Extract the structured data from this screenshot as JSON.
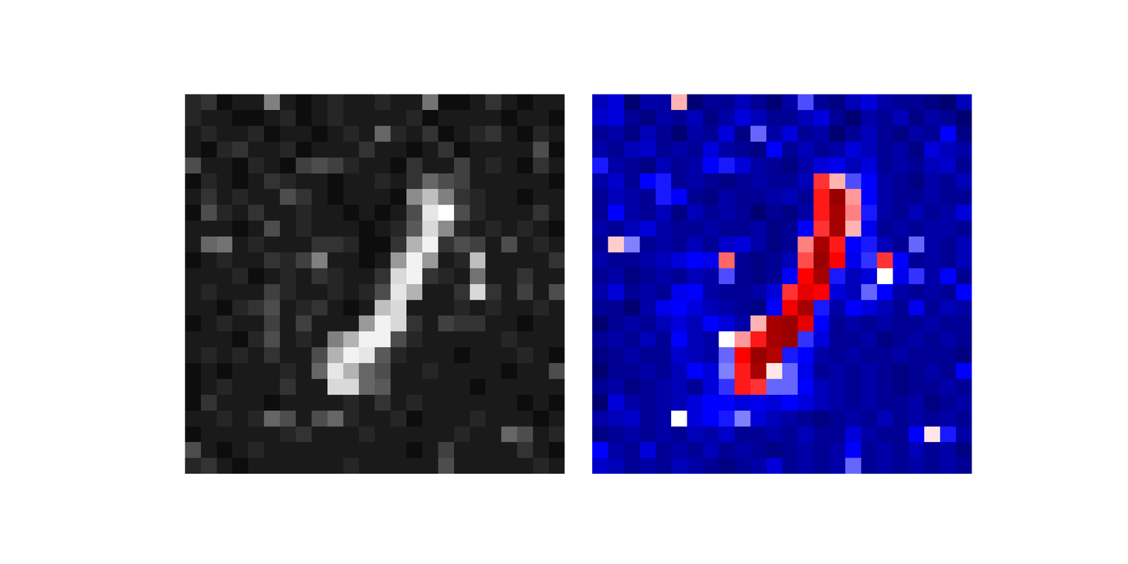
{
  "chart_data": [
    {
      "type": "heatmap",
      "color": "gray",
      "tick_labels": false,
      "zlim": [
        0,
        1
      ],
      "cells": [
        [
          0.15,
          0.2,
          0.05,
          0.1,
          0.1,
          0.5,
          0.1,
          0.05,
          0.1,
          0.15,
          0.1,
          0.1,
          0.15,
          0.1,
          0.1,
          0.45,
          0.05,
          0.05,
          0.1,
          0.2,
          0.1,
          0.05,
          0.1,
          0.1
        ],
        [
          0.15,
          0.1,
          0.1,
          0.05,
          0.05,
          0.1,
          0.15,
          0.05,
          0.1,
          0.15,
          0.1,
          0.1,
          0.1,
          0.1,
          0.15,
          0.05,
          0.1,
          0.1,
          0.1,
          0.1,
          0.05,
          0.1,
          0.1,
          0.05
        ],
        [
          0.1,
          0.15,
          0.1,
          0.1,
          0.15,
          0.05,
          0.1,
          0.1,
          0.05,
          0.1,
          0.15,
          0.1,
          0.4,
          0.15,
          0.1,
          0.2,
          0.05,
          0.1,
          0.15,
          0.2,
          0.1,
          0.05,
          0.15,
          0.1
        ],
        [
          0.1,
          0.05,
          0.15,
          0.2,
          0.1,
          0.1,
          0.15,
          0.05,
          0.1,
          0.1,
          0.1,
          0.2,
          0.1,
          0.1,
          0.05,
          0.1,
          0.2,
          0.05,
          0.1,
          0.1,
          0.1,
          0.1,
          0.3,
          0.05
        ],
        [
          0.3,
          0.1,
          0.1,
          0.05,
          0.15,
          0.1,
          0.05,
          0.25,
          0.3,
          0.25,
          0.15,
          0.1,
          0.1,
          0.05,
          0.2,
          0.1,
          0.1,
          0.25,
          0.1,
          0.15,
          0.1,
          0.05,
          0.2,
          0.1
        ],
        [
          0.05,
          0.15,
          0.1,
          0.05,
          0.1,
          0.2,
          0.15,
          0.1,
          0.1,
          0.05,
          0.1,
          0.1,
          0.15,
          0.1,
          0.2,
          0.4,
          0.3,
          0.25,
          0.1,
          0.1,
          0.1,
          0.1,
          0.1,
          0.05
        ],
        [
          0.1,
          0.2,
          0.1,
          0.15,
          0.1,
          0.1,
          0.3,
          0.2,
          0.1,
          0.05,
          0.1,
          0.1,
          0.1,
          0.05,
          0.55,
          0.75,
          0.5,
          0.2,
          0.15,
          0.1,
          0.1,
          0.05,
          0.1,
          0.1
        ],
        [
          0.05,
          0.3,
          0.15,
          0.1,
          0.2,
          0.1,
          0.1,
          0.15,
          0.1,
          0.1,
          0.05,
          0.1,
          0.05,
          0.1,
          0.3,
          0.9,
          1.0,
          0.3,
          0.15,
          0.1,
          0.1,
          0.1,
          0.2,
          0.1
        ],
        [
          0.1,
          0.1,
          0.1,
          0.05,
          0.1,
          0.3,
          0.1,
          0.15,
          0.1,
          0.1,
          0.1,
          0.05,
          0.1,
          0.15,
          0.35,
          0.85,
          0.55,
          0.15,
          0.1,
          0.15,
          0.1,
          0.15,
          0.1,
          0.05
        ],
        [
          0.1,
          0.4,
          0.45,
          0.1,
          0.15,
          0.1,
          0.1,
          0.1,
          0.2,
          0.2,
          0.15,
          0.05,
          0.05,
          0.2,
          0.7,
          0.95,
          0.2,
          0.3,
          0.25,
          0.1,
          0.3,
          0.1,
          0.15,
          0.1
        ],
        [
          0.05,
          0.1,
          0.15,
          0.1,
          0.1,
          0.2,
          0.15,
          0.25,
          0.5,
          0.1,
          0.1,
          0.05,
          0.1,
          0.6,
          0.95,
          0.6,
          0.1,
          0.15,
          0.75,
          0.1,
          0.1,
          0.1,
          0.1,
          0.2
        ],
        [
          0.1,
          0.1,
          0.1,
          0.15,
          0.05,
          0.1,
          0.15,
          0.1,
          0.2,
          0.15,
          0.1,
          0.1,
          0.2,
          0.85,
          0.95,
          0.2,
          0.15,
          0.1,
          0.45,
          0.1,
          0.1,
          0.2,
          0.1,
          0.1
        ],
        [
          0.1,
          0.15,
          0.1,
          0.1,
          0.1,
          0.25,
          0.15,
          0.1,
          0.1,
          0.15,
          0.1,
          0.15,
          0.3,
          0.9,
          0.7,
          0.1,
          0.1,
          0.2,
          0.85,
          0.2,
          0.1,
          0.25,
          0.1,
          0.3
        ],
        [
          0.1,
          0.1,
          0.05,
          0.15,
          0.2,
          0.3,
          0.1,
          0.15,
          0.2,
          0.1,
          0.05,
          0.1,
          0.75,
          0.85,
          0.1,
          0.1,
          0.1,
          0.15,
          0.1,
          0.15,
          0.1,
          0.1,
          0.15,
          0.1
        ],
        [
          0.05,
          0.1,
          0.15,
          0.1,
          0.1,
          0.25,
          0.1,
          0.25,
          0.1,
          0.1,
          0.1,
          0.6,
          0.95,
          0.85,
          0.2,
          0.1,
          0.25,
          0.2,
          0.2,
          0.1,
          0.1,
          0.05,
          0.1,
          0.1
        ],
        [
          0.1,
          0.1,
          0.1,
          0.05,
          0.15,
          0.3,
          0.1,
          0.15,
          0.1,
          0.5,
          0.7,
          0.95,
          0.95,
          0.3,
          0.15,
          0.1,
          0.1,
          0.1,
          0.1,
          0.1,
          0.15,
          0.1,
          0.1,
          0.1
        ],
        [
          0.1,
          0.15,
          0.1,
          0.15,
          0.1,
          0.2,
          0.1,
          0.1,
          0.3,
          0.7,
          0.95,
          0.9,
          0.35,
          0.15,
          0.1,
          0.1,
          0.1,
          0.05,
          0.1,
          0.1,
          0.1,
          0.15,
          0.1,
          0.05
        ],
        [
          0.05,
          0.1,
          0.05,
          0.1,
          0.1,
          0.1,
          0.15,
          0.1,
          0.4,
          0.9,
          0.7,
          0.4,
          0.3,
          0.1,
          0.1,
          0.15,
          0.1,
          0.1,
          0.1,
          0.1,
          0.05,
          0.1,
          0.1,
          0.3
        ],
        [
          0.05,
          0.1,
          0.15,
          0.1,
          0.1,
          0.1,
          0.2,
          0.1,
          0.1,
          0.85,
          0.85,
          0.4,
          0.35,
          0.1,
          0.1,
          0.1,
          0.1,
          0.1,
          0.05,
          0.1,
          0.1,
          0.1,
          0.1,
          0.1
        ],
        [
          0.05,
          0.2,
          0.1,
          0.1,
          0.1,
          0.05,
          0.1,
          0.1,
          0.1,
          0.1,
          0.15,
          0.1,
          0.2,
          0.1,
          0.15,
          0.1,
          0.1,
          0.1,
          0.1,
          0.1,
          0.1,
          0.05,
          0.1,
          0.05
        ],
        [
          0.1,
          0.1,
          0.15,
          0.1,
          0.15,
          0.4,
          0.3,
          0.1,
          0.3,
          0.4,
          0.15,
          0.1,
          0.1,
          0.15,
          0.05,
          0.1,
          0.1,
          0.1,
          0.15,
          0.1,
          0.1,
          0.1,
          0.05,
          0.1
        ],
        [
          0.05,
          0.1,
          0.1,
          0.1,
          0.1,
          0.1,
          0.15,
          0.2,
          0.1,
          0.1,
          0.1,
          0.15,
          0.1,
          0.1,
          0.1,
          0.1,
          0.1,
          0.15,
          0.1,
          0.1,
          0.4,
          0.3,
          0.1,
          0.15
        ],
        [
          0.3,
          0.1,
          0.05,
          0.1,
          0.15,
          0.1,
          0.1,
          0.1,
          0.1,
          0.1,
          0.1,
          0.1,
          0.1,
          0.1,
          0.05,
          0.1,
          0.25,
          0.1,
          0.1,
          0.1,
          0.1,
          0.2,
          0.1,
          0.05
        ],
        [
          0.15,
          0.2,
          0.1,
          0.05,
          0.1,
          0.1,
          0.1,
          0.1,
          0.1,
          0.1,
          0.15,
          0.1,
          0.1,
          0.1,
          0.1,
          0.1,
          0.3,
          0.1,
          0.1,
          0.1,
          0.1,
          0.1,
          0.15,
          0.1
        ]
      ]
    },
    {
      "type": "heatmap",
      "color": "seismic",
      "tick_labels": false,
      "zlim": [
        -1,
        1
      ],
      "cells": [
        [
          -0.7,
          -0.6,
          -0.9,
          -0.75,
          -0.75,
          0.15,
          -0.9,
          -0.8,
          -0.8,
          -0.7,
          -0.8,
          -0.9,
          -0.75,
          -0.35,
          -0.8,
          -0.85,
          -0.7,
          -0.6,
          -0.75,
          -0.8,
          -0.8,
          -0.85,
          -0.9,
          -0.7
        ],
        [
          -0.65,
          -0.6,
          -0.8,
          -0.85,
          -0.75,
          -0.8,
          -0.7,
          -0.85,
          -0.75,
          -0.6,
          -0.7,
          -0.8,
          -0.8,
          -0.7,
          -0.6,
          -0.8,
          -0.9,
          -0.75,
          -0.8,
          -0.7,
          -0.85,
          -0.75,
          -0.8,
          -0.9
        ],
        [
          -0.8,
          -0.75,
          -0.85,
          -0.7,
          -0.8,
          -0.9,
          -0.75,
          -0.8,
          -0.6,
          -0.85,
          -0.3,
          -0.75,
          -0.6,
          -0.8,
          -0.75,
          -0.9,
          -0.8,
          -0.7,
          -0.8,
          -0.85,
          -0.75,
          -0.8,
          -0.5,
          -0.85
        ],
        [
          -0.75,
          -0.8,
          -0.7,
          -0.65,
          -0.8,
          -0.75,
          -0.8,
          -0.6,
          -0.75,
          -0.8,
          -0.85,
          -0.5,
          -0.8,
          -0.7,
          -0.8,
          -0.75,
          -0.6,
          -0.7,
          -0.8,
          -0.75,
          -0.85,
          -0.6,
          -0.7,
          -0.75
        ],
        [
          -0.45,
          -0.75,
          -0.8,
          -0.85,
          -0.7,
          -0.8,
          -0.75,
          -0.5,
          -0.45,
          -0.6,
          -0.75,
          -0.8,
          -0.85,
          -0.75,
          -0.6,
          -0.55,
          -0.7,
          -0.6,
          -0.8,
          -0.75,
          -0.8,
          -0.7,
          -0.65,
          -0.8
        ],
        [
          -0.75,
          -0.65,
          -0.8,
          -0.5,
          -0.45,
          -0.8,
          -0.75,
          -0.8,
          -0.85,
          -0.8,
          -0.75,
          -0.8,
          -0.8,
          -0.7,
          0.4,
          0.15,
          -0.35,
          -0.5,
          -0.75,
          -0.8,
          -0.85,
          -0.75,
          -0.8,
          -0.7
        ],
        [
          -0.8,
          -0.7,
          -0.75,
          -0.8,
          -0.45,
          -0.5,
          -0.8,
          -0.85,
          -0.75,
          -0.8,
          -0.8,
          -0.75,
          -0.7,
          -0.8,
          0.45,
          0.9,
          0.2,
          -0.5,
          -0.75,
          -0.8,
          -0.8,
          -0.75,
          -0.8,
          -0.8
        ],
        [
          -0.8,
          -0.5,
          -0.75,
          -0.8,
          -0.7,
          -0.85,
          -0.7,
          -0.8,
          -0.75,
          -0.8,
          -0.9,
          -0.8,
          -0.85,
          -0.75,
          0.45,
          0.85,
          0.25,
          -0.45,
          -0.75,
          -0.8,
          -0.7,
          -0.8,
          -0.75,
          -0.6
        ],
        [
          -0.75,
          -0.8,
          -0.7,
          -0.6,
          -0.75,
          -0.8,
          -0.8,
          -0.75,
          -0.8,
          -0.8,
          -0.75,
          -0.85,
          -0.8,
          -0.5,
          0.4,
          0.85,
          0.15,
          -0.55,
          -0.8,
          -0.75,
          -0.8,
          -0.75,
          -0.75,
          -0.8
        ],
        [
          -0.8,
          0.1,
          -0.25,
          -0.8,
          -0.75,
          -0.8,
          -0.7,
          -0.8,
          -0.65,
          -0.6,
          -0.75,
          -0.85,
          -0.8,
          0.25,
          0.85,
          0.45,
          -0.5,
          -0.45,
          -0.7,
          -0.8,
          -0.3,
          -0.75,
          -0.8,
          -0.7
        ],
        [
          -0.75,
          -0.8,
          -0.8,
          -0.75,
          -0.7,
          -0.6,
          -0.5,
          -0.55,
          0.3,
          -0.8,
          -0.85,
          -0.8,
          -0.7,
          0.35,
          0.9,
          0.5,
          -0.55,
          -0.4,
          0.4,
          -0.5,
          -0.8,
          -0.75,
          -0.8,
          -0.7
        ],
        [
          -0.8,
          -0.75,
          -0.85,
          -0.8,
          -0.75,
          -0.8,
          -0.7,
          -0.75,
          -0.35,
          -0.8,
          -0.85,
          -0.8,
          -0.5,
          0.5,
          0.85,
          -0.45,
          -0.7,
          -0.6,
          0.0,
          -0.55,
          -0.4,
          -0.75,
          -0.5,
          -0.8
        ],
        [
          -0.75,
          -0.6,
          -0.8,
          -0.75,
          -0.8,
          -0.55,
          -0.5,
          -0.75,
          -0.8,
          -0.8,
          -0.75,
          -0.6,
          0.4,
          0.6,
          0.5,
          -0.6,
          -0.7,
          -0.3,
          -0.5,
          -0.75,
          -0.8,
          -0.75,
          -0.8,
          -0.5
        ],
        [
          -0.8,
          -0.8,
          -0.9,
          -0.75,
          -0.55,
          -0.5,
          -0.6,
          -0.7,
          -0.75,
          -0.8,
          -0.85,
          -0.5,
          0.55,
          0.85,
          -0.45,
          -0.75,
          -0.5,
          -0.6,
          -0.7,
          -0.8,
          -0.55,
          -0.8,
          -0.7,
          -0.75
        ],
        [
          -0.9,
          -0.8,
          -0.75,
          -0.8,
          -0.7,
          -0.6,
          -0.7,
          -0.5,
          -0.6,
          -0.75,
          0.15,
          0.85,
          0.9,
          0.6,
          -0.5,
          -0.8,
          -0.75,
          -0.8,
          -0.75,
          -0.8,
          -0.8,
          -0.75,
          -0.8,
          -0.8
        ],
        [
          -0.8,
          -0.75,
          -0.8,
          -0.7,
          -0.8,
          -0.5,
          -0.7,
          -0.75,
          0.0,
          0.2,
          0.45,
          0.85,
          0.9,
          -0.4,
          -0.6,
          -0.8,
          -0.8,
          -0.75,
          -0.85,
          -0.8,
          -0.75,
          -0.8,
          -0.75,
          -0.8
        ],
        [
          -0.85,
          -0.8,
          -0.75,
          -0.8,
          -0.8,
          -0.65,
          -0.7,
          -0.75,
          -0.3,
          0.5,
          0.9,
          0.8,
          -0.45,
          -0.5,
          -0.75,
          -0.8,
          -0.75,
          -0.8,
          -0.8,
          -0.75,
          -0.8,
          -0.8,
          -0.8,
          -0.85
        ],
        [
          -0.9,
          -0.8,
          -0.8,
          -0.75,
          -0.8,
          -0.7,
          -0.5,
          -0.6,
          -0.25,
          0.45,
          0.85,
          0.05,
          -0.3,
          -0.55,
          -0.8,
          -0.75,
          -0.8,
          -0.75,
          -0.8,
          -0.85,
          -0.8,
          -0.75,
          -0.8,
          -0.5
        ],
        [
          -0.8,
          -0.75,
          -0.85,
          -0.8,
          -0.75,
          -0.7,
          -0.8,
          -0.6,
          -0.4,
          0.45,
          0.4,
          -0.3,
          -0.3,
          -0.5,
          -0.7,
          -0.75,
          -0.8,
          -0.75,
          -0.8,
          -0.85,
          -0.8,
          -0.8,
          -0.75,
          -0.8
        ],
        [
          -0.9,
          -0.6,
          -0.75,
          -0.8,
          -0.75,
          -0.7,
          -0.6,
          -0.5,
          -0.5,
          -0.6,
          -0.55,
          -0.6,
          -0.5,
          -0.6,
          -0.7,
          -0.75,
          -0.8,
          -0.75,
          -0.8,
          -0.8,
          -0.75,
          -0.85,
          -0.8,
          -0.75
        ],
        [
          -0.75,
          -0.7,
          -0.65,
          -0.8,
          -0.75,
          0.0,
          -0.6,
          -0.5,
          -0.45,
          -0.25,
          -0.6,
          -0.7,
          -0.75,
          -0.8,
          -0.85,
          -0.8,
          -0.75,
          -0.8,
          -0.7,
          -0.8,
          -0.75,
          -0.8,
          -0.75,
          -0.8
        ],
        [
          -0.85,
          -0.8,
          -0.75,
          -0.8,
          -0.75,
          -0.8,
          -0.7,
          -0.75,
          -0.65,
          -0.8,
          -0.8,
          -0.75,
          -0.8,
          -0.7,
          -0.8,
          -0.8,
          -0.6,
          -0.75,
          -0.8,
          -0.8,
          -0.5,
          0.05,
          -0.45,
          -0.75
        ],
        [
          -0.5,
          -0.75,
          -0.8,
          -0.6,
          -0.8,
          -0.75,
          -0.8,
          -0.7,
          -0.8,
          -0.75,
          -0.8,
          -0.85,
          -0.8,
          -0.75,
          -0.8,
          -0.75,
          -0.5,
          -0.8,
          -0.75,
          -0.8,
          -0.7,
          -0.8,
          -0.75,
          -0.85
        ],
        [
          -0.65,
          -0.7,
          -0.8,
          -0.75,
          -0.8,
          -0.7,
          -0.75,
          -0.8,
          -0.85,
          -0.8,
          -0.75,
          -0.6,
          -0.8,
          -0.75,
          -0.8,
          -0.75,
          -0.3,
          -0.8,
          -0.75,
          -0.8,
          -0.75,
          -0.8,
          -0.75,
          -0.8
        ]
      ]
    }
  ]
}
